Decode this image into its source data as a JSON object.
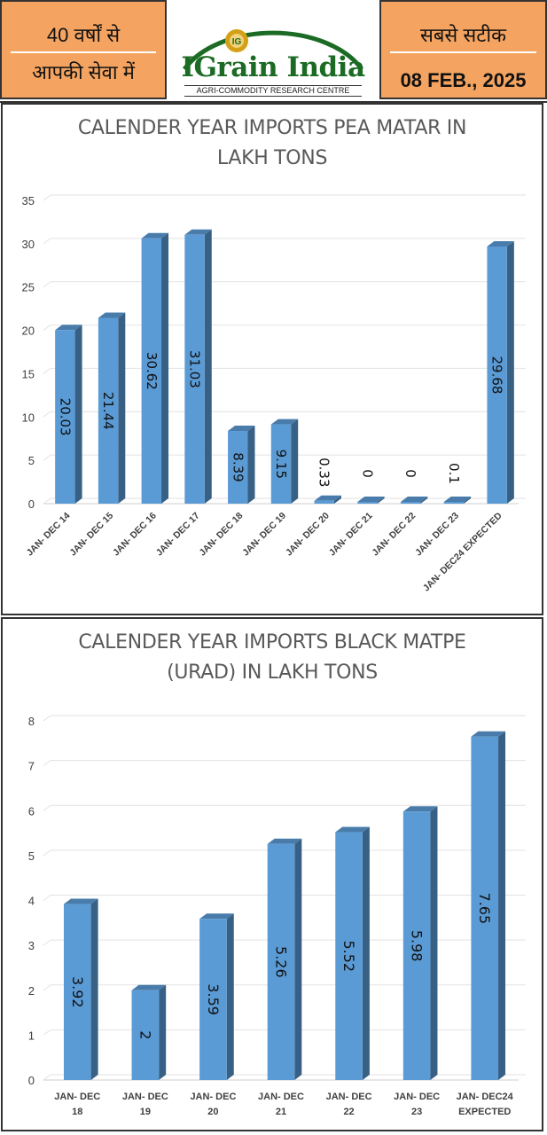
{
  "header": {
    "left_line1": "40 वर्षों से",
    "left_line2": "आपकी सेवा में",
    "brand": "IGrain India",
    "brand_tagline": "AGRI-COMMODITY RESEARCH CENTRE",
    "logo_badge": "IG",
    "right_line1": "सबसे सटीक",
    "date": "08 FEB., 2025",
    "colors": {
      "orange": "#f4a460",
      "green": "#1c6b24",
      "gold": "#d4a017"
    }
  },
  "chart_data": [
    {
      "type": "bar",
      "title_line1": "CALENDER YEAR IMPORTS PEA MATAR IN",
      "title_line2": "LAKH TONS",
      "categories": [
        "JAN- DEC 14",
        "JAN- DEC 15",
        "JAN- DEC 16",
        "JAN- DEC 17",
        "JAN- DEC 18",
        "JAN- DEC 19",
        "JAN- DEC 20",
        "JAN- DEC 21",
        "JAN- DEC 22",
        "JAN- DEC 23",
        "JAN- DEC24 EXPECTED"
      ],
      "values": [
        20.03,
        21.44,
        30.62,
        31.03,
        8.39,
        9.15,
        0.33,
        0,
        0,
        0.1,
        29.68
      ],
      "labels": [
        "20.03",
        "21.44",
        "30.62",
        "31.03",
        "8.39",
        "9.15",
        "0.33",
        "0",
        "0",
        "0.1",
        "29.68"
      ],
      "yticks": [
        0,
        5,
        10,
        15,
        20,
        25,
        30,
        35
      ],
      "ylim": [
        0,
        35
      ],
      "grid": true,
      "bar_color": "#5b9bd5"
    },
    {
      "type": "bar",
      "title_line1": "CALENDER YEAR IMPORTS BLACK MATPE",
      "title_line2": "(URAD) IN LAKH TONS",
      "categories": [
        [
          "JAN- DEC",
          "18"
        ],
        [
          "JAN- DEC",
          "19"
        ],
        [
          "JAN- DEC",
          "20"
        ],
        [
          "JAN- DEC",
          "21"
        ],
        [
          "JAN- DEC",
          "22"
        ],
        [
          "JAN- DEC",
          "23"
        ],
        [
          "JAN- DEC24",
          "EXPECTED"
        ]
      ],
      "values": [
        3.92,
        2,
        3.59,
        5.26,
        5.52,
        5.98,
        7.65
      ],
      "labels": [
        "3.92",
        "2",
        "3.59",
        "5.26",
        "5.52",
        "5.98",
        "7.65"
      ],
      "yticks": [
        0,
        1,
        2,
        3,
        4,
        5,
        6,
        7,
        8
      ],
      "ylim": [
        0,
        8
      ],
      "grid": true,
      "bar_color": "#5b9bd5"
    }
  ]
}
